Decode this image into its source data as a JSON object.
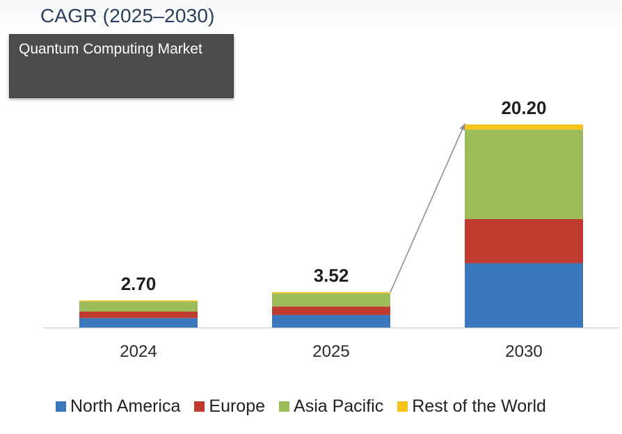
{
  "header": {
    "cagr_title": "CAGR (2025–2030)",
    "market_label": "Quantum Computing Market"
  },
  "chart_data": {
    "type": "bar",
    "stacked": true,
    "title": "Quantum Computing Market",
    "xlabel": "",
    "ylabel": "",
    "categories": [
      "2024",
      "2025",
      "2030"
    ],
    "totals": [
      2.7,
      3.52,
      20.2
    ],
    "total_labels": [
      "2.70",
      "3.52",
      "20.20"
    ],
    "series": [
      {
        "name": "North America",
        "color": "#3a78bb",
        "values": [
          0.95,
          1.25,
          6.4
        ]
      },
      {
        "name": "Europe",
        "color": "#bf3a2f",
        "values": [
          0.65,
          0.85,
          4.4
        ]
      },
      {
        "name": "Asia Pacific",
        "color": "#9cbb59",
        "values": [
          1.0,
          1.3,
          8.9
        ]
      },
      {
        "name": "Rest of the World",
        "color": "#f6c31b",
        "values": [
          0.1,
          0.12,
          0.5
        ]
      }
    ],
    "ylim": [
      0,
      20.2
    ],
    "grid": false,
    "legend_position": "bottom",
    "annotation": "arrow from 2025 total to 2030 total"
  }
}
